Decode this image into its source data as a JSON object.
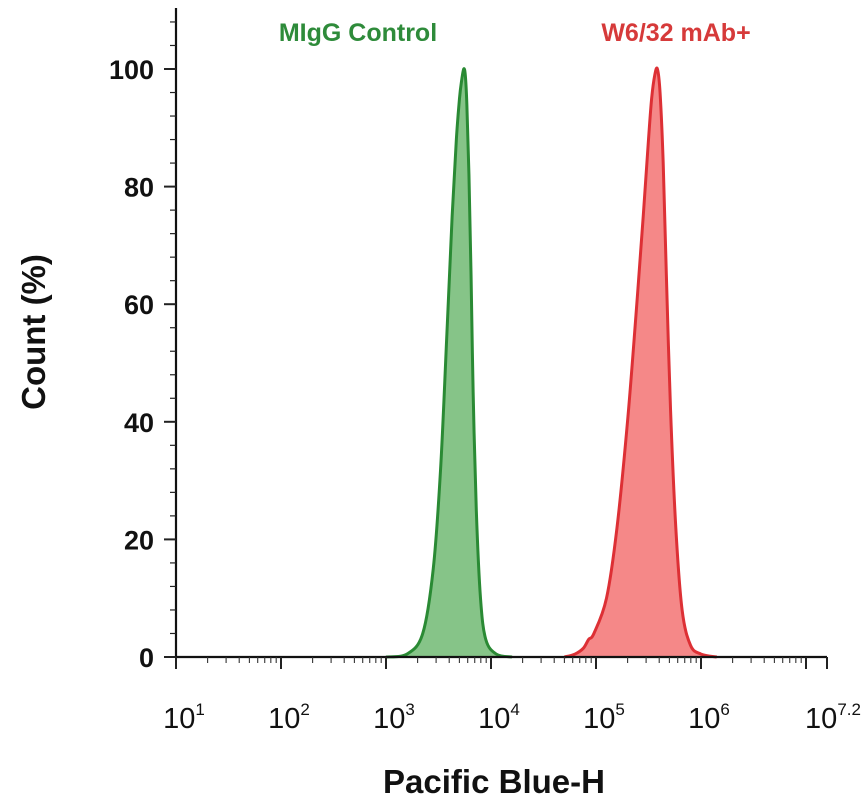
{
  "chart_data": {
    "type": "area",
    "title": "",
    "xlabel": "Pacific Blue-H",
    "ylabel": "Count (%)",
    "xscale": "log10",
    "xlim_exponent": [
      1,
      7.2
    ],
    "ylim": [
      0,
      110
    ],
    "x_ticks": [
      {
        "base": "10",
        "exp": "1",
        "value": 1
      },
      {
        "base": "10",
        "exp": "2",
        "value": 2
      },
      {
        "base": "10",
        "exp": "3",
        "value": 3
      },
      {
        "base": "10",
        "exp": "4",
        "value": 4
      },
      {
        "base": "10",
        "exp": "5",
        "value": 5
      },
      {
        "base": "10",
        "exp": "6",
        "value": 6
      },
      {
        "base": "10",
        "exp": "7.2",
        "value": 7.2
      }
    ],
    "y_ticks": [
      {
        "label": "0",
        "value": 0
      },
      {
        "label": "20",
        "value": 20
      },
      {
        "label": "40",
        "value": 40
      },
      {
        "label": "60",
        "value": 60
      },
      {
        "label": "80",
        "value": 80
      },
      {
        "label": "100",
        "value": 100
      }
    ],
    "series": [
      {
        "name": "MIgG Control",
        "label_color": "#2e8b3a",
        "line_color": "#2a8a34",
        "fill_color": "#86c488",
        "points_log10_x": [
          3.0,
          3.2,
          3.35,
          3.45,
          3.52,
          3.58,
          3.63,
          3.67,
          3.7,
          3.72,
          3.74,
          3.755,
          3.77,
          3.79,
          3.81,
          3.83,
          3.86,
          3.9,
          3.95,
          4.05,
          4.2
        ],
        "points_y": [
          0,
          0.5,
          4,
          15,
          32,
          55,
          75,
          88,
          95,
          98,
          100,
          99,
          94,
          82,
          65,
          45,
          25,
          10,
          3,
          0.5,
          0
        ]
      },
      {
        "name": "W6/32 mAb+",
        "label_color": "#d63a3a",
        "line_color": "#dd3035",
        "fill_color": "#f58888",
        "points_log10_x": [
          4.7,
          4.8,
          4.88,
          4.93,
          4.98,
          5.1,
          5.2,
          5.3,
          5.38,
          5.45,
          5.5,
          5.53,
          5.56,
          5.585,
          5.61,
          5.64,
          5.67,
          5.71,
          5.76,
          5.82,
          5.9,
          6.0,
          6.15
        ],
        "points_y": [
          0,
          0.5,
          1.5,
          3,
          4,
          10,
          22,
          40,
          58,
          75,
          88,
          95,
          99,
          100,
          96,
          84,
          65,
          42,
          22,
          8,
          2,
          0.5,
          0
        ]
      }
    ]
  }
}
